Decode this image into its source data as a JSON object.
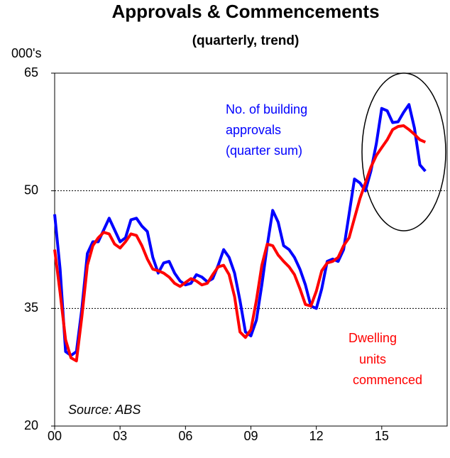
{
  "chart_data": {
    "type": "line",
    "title": "Approvals & Commencements",
    "subtitle": "(quarterly, trend)",
    "y_unit_label": "000's",
    "source": "Source: ABS",
    "annotations": {
      "approvals": [
        "No. of building",
        "approvals",
        "(quarter sum)"
      ],
      "commencements": [
        "Dwelling",
        "units",
        "commenced"
      ]
    },
    "x": [
      2000,
      2000.25,
      2000.5,
      2000.75,
      2001,
      2001.25,
      2001.5,
      2001.75,
      2002,
      2002.25,
      2002.5,
      2002.75,
      2003,
      2003.25,
      2003.5,
      2003.75,
      2004,
      2004.25,
      2004.5,
      2004.75,
      2005,
      2005.25,
      2005.5,
      2005.75,
      2006,
      2006.25,
      2006.5,
      2006.75,
      2007,
      2007.25,
      2007.5,
      2007.75,
      2008,
      2008.25,
      2008.5,
      2008.75,
      2009,
      2009.25,
      2009.5,
      2009.75,
      2010,
      2010.25,
      2010.5,
      2010.75,
      2011,
      2011.25,
      2011.5,
      2011.75,
      2012,
      2012.25,
      2012.5,
      2012.75,
      2013,
      2013.25,
      2013.5,
      2013.75,
      2014,
      2014.25,
      2014.5,
      2014.75,
      2015,
      2015.25,
      2015.5,
      2015.75,
      2016,
      2016.25,
      2016.5,
      2016.75,
      2017
    ],
    "series": [
      {
        "name": "No. of building approvals (quarter sum)",
        "color": "#0000ff",
        "values": [
          47,
          40,
          29.5,
          29,
          29.5,
          35,
          42,
          43.5,
          43.5,
          45,
          46.5,
          45,
          43.5,
          44,
          46.3,
          46.5,
          45.5,
          44.8,
          41.5,
          39.5,
          40.8,
          41,
          39.5,
          38.5,
          38,
          38.2,
          39.3,
          39,
          38.4,
          38.8,
          40.5,
          42.5,
          41.5,
          39.5,
          36,
          32,
          31.5,
          33.5,
          38,
          43,
          47.5,
          46,
          43,
          42.5,
          41.5,
          40,
          38,
          35.3,
          35,
          37.5,
          41,
          41.3,
          41,
          42.5,
          47,
          51.5,
          51,
          50,
          52.5,
          56,
          60.5,
          60.2,
          58.7,
          58.8,
          60,
          61,
          58,
          53.3,
          52.5
        ]
      },
      {
        "name": "Dwelling units commenced",
        "color": "#ff0000",
        "values": [
          42.5,
          37,
          31,
          28.7,
          28.3,
          34,
          40.5,
          43,
          44,
          44.7,
          44.5,
          43.2,
          42.7,
          43.5,
          44.5,
          44.3,
          43,
          41.3,
          40,
          39.8,
          39.5,
          39,
          38.2,
          37.8,
          38.3,
          38.8,
          38.5,
          38,
          38.2,
          39.3,
          40.3,
          40.5,
          39.3,
          36.5,
          32,
          31.3,
          32.3,
          36,
          40.5,
          43.2,
          43,
          41.8,
          41,
          40.3,
          39.3,
          37.5,
          35.5,
          35.3,
          37.2,
          39.8,
          40.8,
          41,
          41.5,
          43,
          44,
          46.5,
          49,
          51,
          53,
          54.5,
          55.5,
          56.5,
          57.8,
          58.2,
          58.3,
          57.8,
          57.2,
          56.5,
          56.2
        ]
      }
    ],
    "xlim": [
      2000,
      2018
    ],
    "xticks": [
      {
        "value": 2000,
        "label": "00"
      },
      {
        "value": 2003,
        "label": "03"
      },
      {
        "value": 2006,
        "label": "06"
      },
      {
        "value": 2009,
        "label": "09"
      },
      {
        "value": 2012,
        "label": "12"
      },
      {
        "value": 2015,
        "label": "15"
      }
    ],
    "ylim": [
      20,
      65
    ],
    "yticks": [
      20,
      35,
      50,
      65
    ],
    "grid": true
  }
}
